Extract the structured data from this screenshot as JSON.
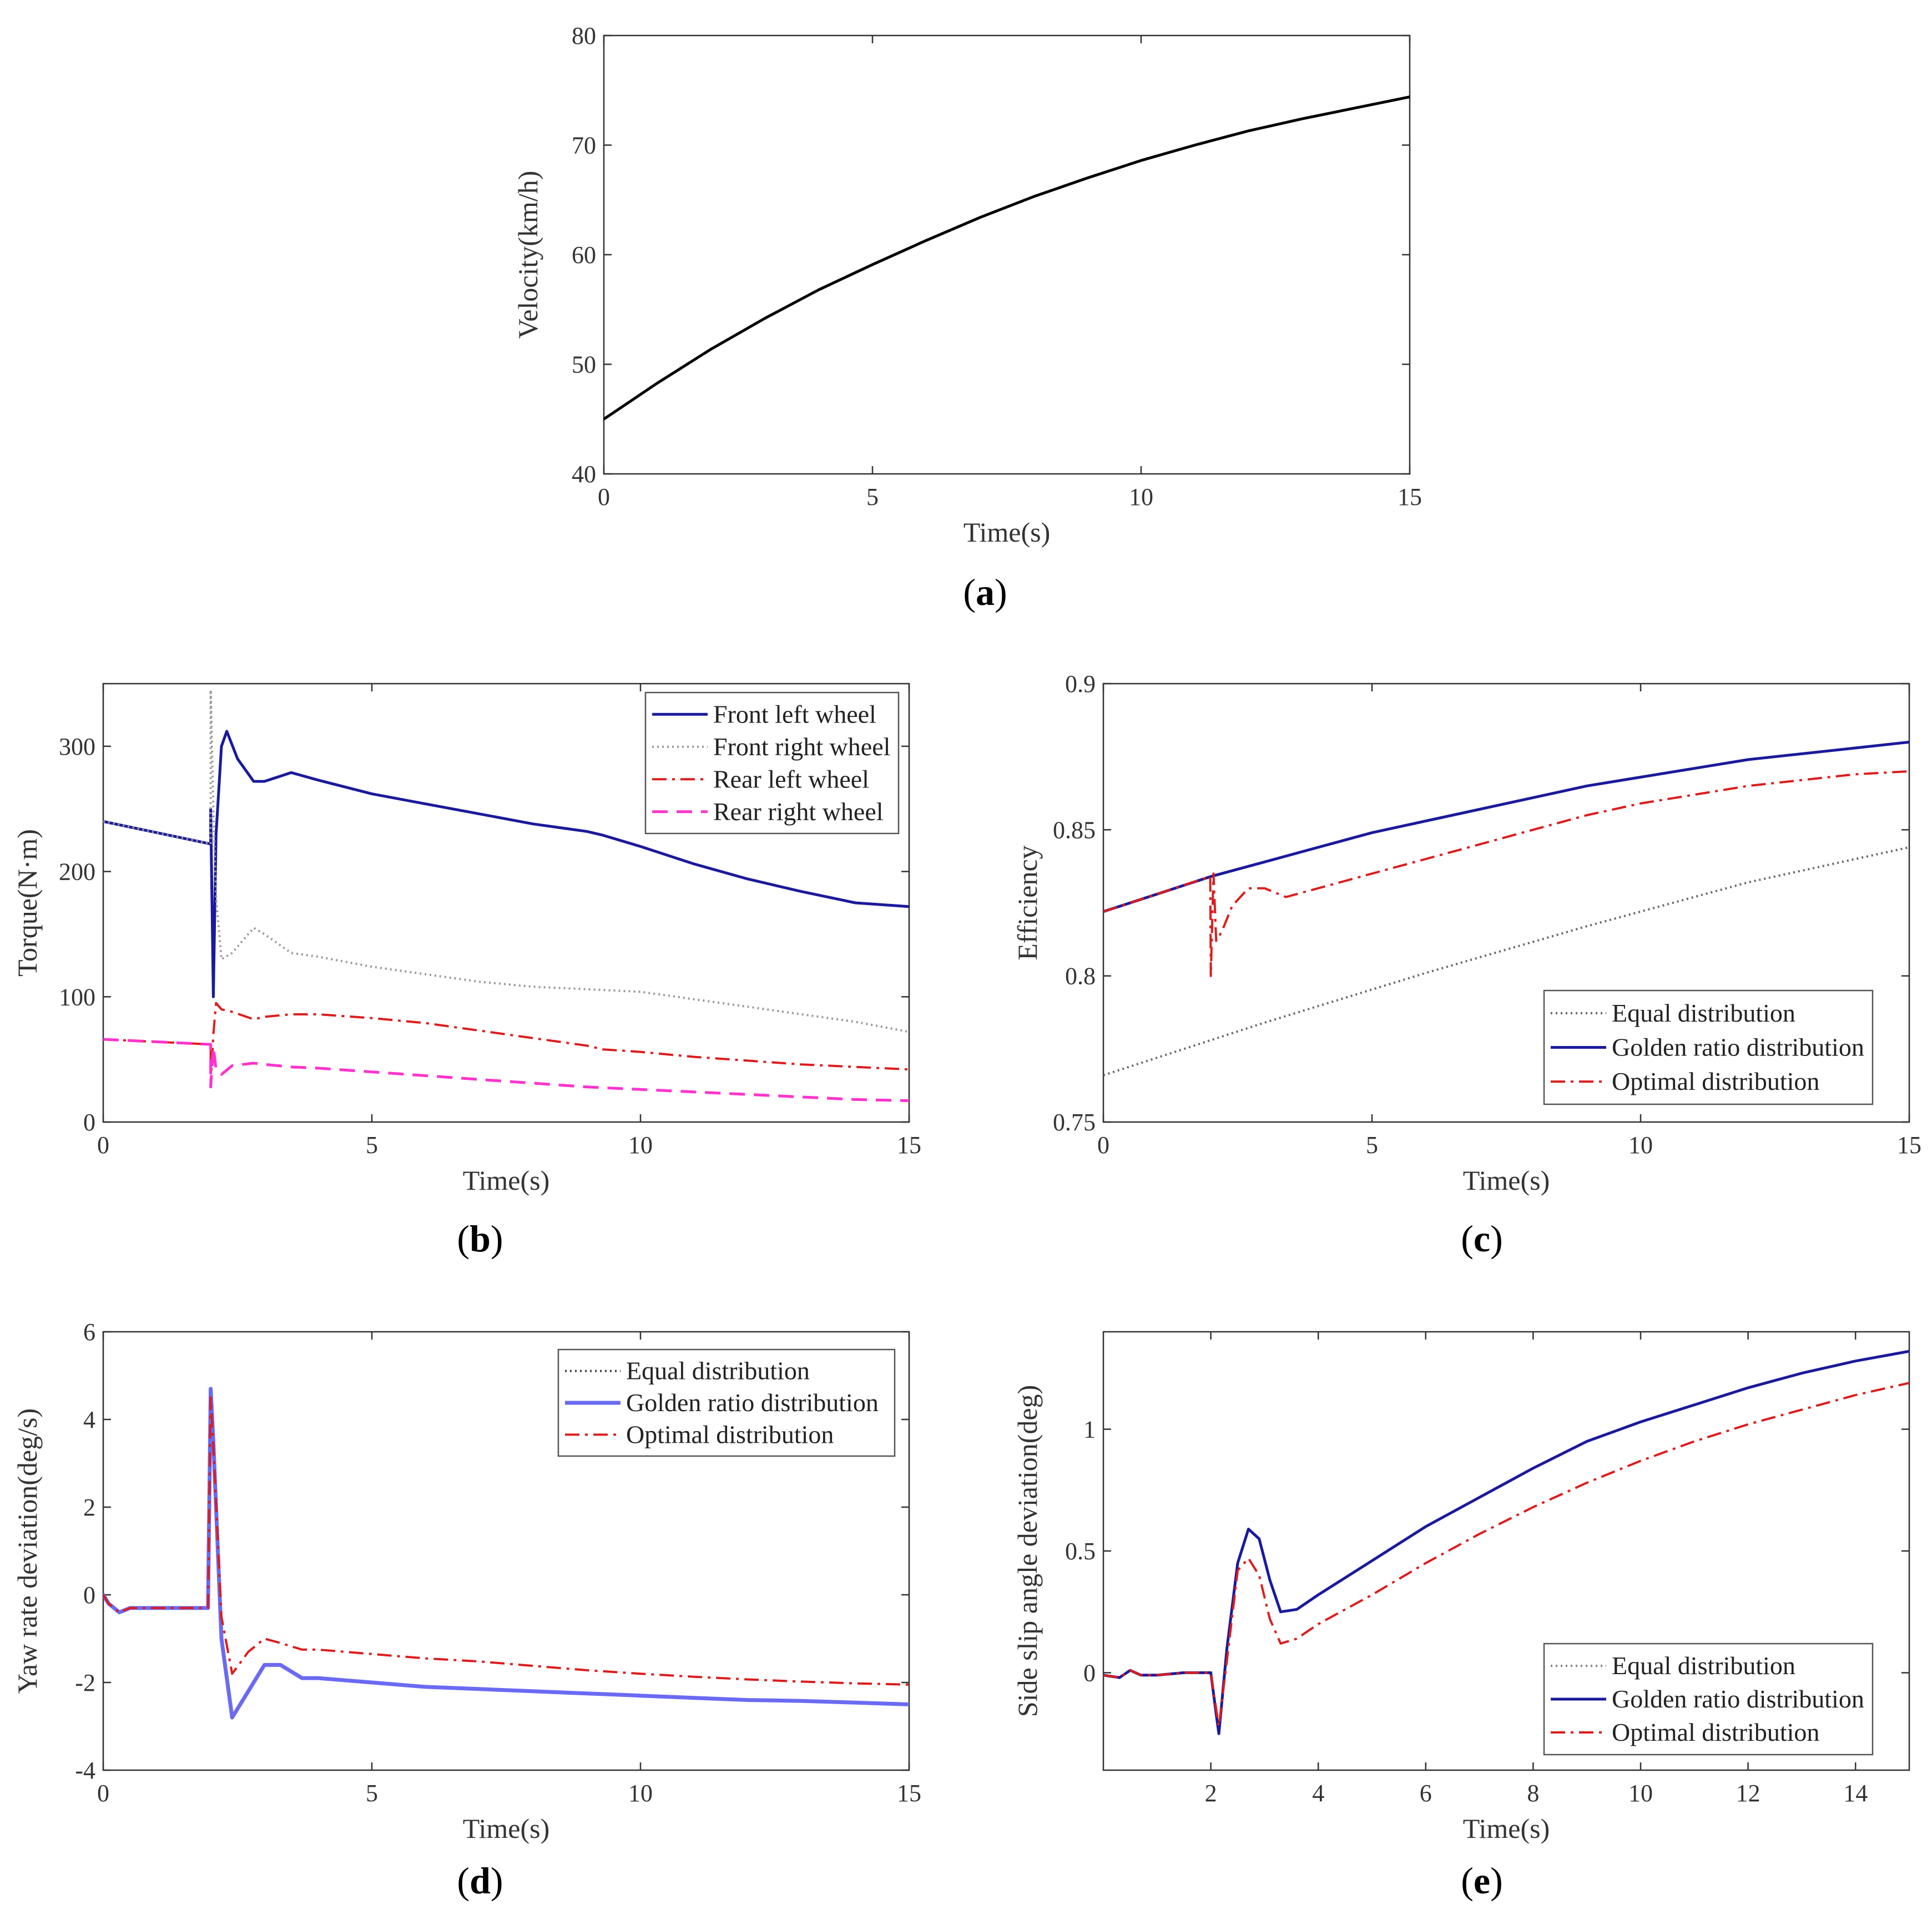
{
  "chart_data": [
    {
      "id": "a",
      "type": "line",
      "panel_label": "a",
      "title": "",
      "xlabel": "Time(s)",
      "ylabel": "Velocity(km/h)",
      "xlim": [
        0,
        15
      ],
      "ylim": [
        40,
        80
      ],
      "xticks": [
        0,
        5,
        10,
        15
      ],
      "yticks": [
        40,
        50,
        60,
        70,
        80
      ],
      "legend": null,
      "series": [
        {
          "name": "Velocity",
          "color": "#000000",
          "dash": "solid",
          "width": 5,
          "x": [
            0,
            1,
            2,
            3,
            4,
            5,
            6,
            7,
            8,
            9,
            10,
            11,
            12,
            13,
            14,
            15
          ],
          "y": [
            45.0,
            48.3,
            51.4,
            54.2,
            56.8,
            59.1,
            61.3,
            63.4,
            65.3,
            67.0,
            68.6,
            70.0,
            71.3,
            72.4,
            73.4,
            74.4
          ]
        }
      ]
    },
    {
      "id": "b",
      "type": "line",
      "panel_label": "b",
      "title": "",
      "xlabel": "Time(s)",
      "ylabel": "Torque(N·m)",
      "xlim": [
        0,
        15
      ],
      "ylim": [
        0,
        350
      ],
      "xticks": [
        0,
        5,
        10,
        15
      ],
      "yticks": [
        0,
        100,
        200,
        300
      ],
      "legend": {
        "position": "top-right",
        "entries": [
          "Front left wheel",
          "Front right wheel",
          "Rear left wheel",
          "Rear right wheel"
        ]
      },
      "series": [
        {
          "name": "Front left wheel",
          "color": "#1a1a9c",
          "dash": "solid",
          "width": 5,
          "x": [
            0,
            1,
            2,
            2.0,
            2.05,
            2.1,
            2.2,
            2.3,
            2.5,
            2.8,
            3.0,
            3.5,
            4,
            5,
            6,
            7,
            8,
            9,
            9.3,
            10,
            11,
            12,
            13,
            14,
            15
          ],
          "y": [
            240,
            231,
            222,
            250,
            100,
            230,
            300,
            312,
            290,
            272,
            272,
            279,
            273,
            262,
            254,
            246,
            238,
            232,
            229,
            220,
            206,
            194,
            184,
            175,
            172
          ]
        },
        {
          "name": "Front right wheel",
          "color": "#999999",
          "dash": "dotted",
          "width": 4,
          "x": [
            0,
            1,
            2,
            2.0,
            2.05,
            2.1,
            2.2,
            2.4,
            2.8,
            3.0,
            3.5,
            4,
            5,
            6,
            7,
            8,
            9,
            10,
            11,
            12,
            13,
            14,
            15
          ],
          "y": [
            240,
            231,
            222,
            345,
            250,
            180,
            130,
            135,
            155,
            150,
            135,
            132,
            124,
            118,
            112,
            108,
            106,
            104,
            98,
            92,
            86,
            80,
            72
          ]
        },
        {
          "name": "Rear left wheel",
          "color": "#dd1c1c",
          "dash": "dashdot",
          "width": 4,
          "x": [
            0,
            1,
            2,
            2.0,
            2.05,
            2.1,
            2.2,
            2.4,
            2.8,
            3.0,
            3.5,
            4,
            5,
            6,
            7,
            8,
            9,
            9.3,
            10,
            11,
            12,
            13,
            14,
            15
          ],
          "y": [
            66,
            64,
            62,
            30,
            70,
            95,
            90,
            88,
            82,
            84,
            86,
            86,
            83,
            79,
            73,
            67,
            61,
            58,
            56,
            52,
            49,
            46,
            44,
            42
          ]
        },
        {
          "name": "Rear right wheel",
          "color": "#ff33cc",
          "dash": "dashed",
          "width": 5,
          "x": [
            0,
            1,
            2,
            2.0,
            2.05,
            2.1,
            2.2,
            2.4,
            2.8,
            3.0,
            3.5,
            4,
            5,
            6,
            7,
            8,
            9,
            10,
            11,
            12,
            13,
            14,
            15
          ],
          "y": [
            66,
            64,
            62,
            28,
            60,
            42,
            38,
            45,
            47,
            46,
            44,
            43,
            40,
            37,
            34,
            31,
            28,
            26,
            24,
            22,
            20,
            18,
            17
          ]
        }
      ]
    },
    {
      "id": "c",
      "type": "line",
      "panel_label": "c",
      "title": "",
      "xlabel": "Time(s)",
      "ylabel": "Efficiency",
      "xlim": [
        0,
        15
      ],
      "ylim": [
        0.75,
        0.9
      ],
      "xticks": [
        0,
        5,
        10,
        15
      ],
      "yticks": [
        0.75,
        0.8,
        0.85,
        0.9
      ],
      "legend": {
        "position": "bottom-right",
        "entries": [
          "Equal distribution",
          "Golden ratio distribution",
          "Optimal distribution"
        ]
      },
      "series": [
        {
          "name": "Equal distribution",
          "color": "#666666",
          "dash": "dotted",
          "width": 4,
          "x": [
            0,
            3,
            6,
            9,
            12,
            15
          ],
          "y": [
            0.766,
            0.784,
            0.801,
            0.817,
            0.832,
            0.844
          ]
        },
        {
          "name": "Golden ratio distribution",
          "color": "#1a1a9c",
          "dash": "solid",
          "width": 5,
          "x": [
            0,
            1,
            2,
            3,
            4,
            5,
            6,
            7,
            8,
            9,
            10,
            11,
            12,
            13,
            14,
            15
          ],
          "y": [
            0.822,
            0.828,
            0.834,
            0.839,
            0.844,
            0.849,
            0.853,
            0.857,
            0.861,
            0.865,
            0.868,
            0.871,
            0.874,
            0.876,
            0.878,
            0.88
          ]
        },
        {
          "name": "Optimal distribution",
          "color": "#dd1c1c",
          "dash": "dashdot",
          "width": 4,
          "x": [
            0,
            1,
            1.99,
            2.0,
            2.05,
            2.1,
            2.2,
            2.4,
            2.7,
            3.0,
            3.4,
            4,
            5,
            6,
            7,
            8,
            9,
            10,
            11,
            12,
            13,
            14,
            15
          ],
          "y": [
            0.822,
            0.828,
            0.834,
            0.8,
            0.835,
            0.812,
            0.815,
            0.824,
            0.83,
            0.83,
            0.827,
            0.83,
            0.835,
            0.84,
            0.845,
            0.85,
            0.855,
            0.859,
            0.862,
            0.865,
            0.867,
            0.869,
            0.87
          ]
        }
      ]
    },
    {
      "id": "d",
      "type": "line",
      "panel_label": "d",
      "title": "",
      "xlabel": "Time(s)",
      "ylabel": "Yaw rate deviation(deg/s)",
      "xlim": [
        0,
        15
      ],
      "ylim": [
        -4,
        6
      ],
      "xticks": [
        0,
        5,
        10,
        15
      ],
      "yticks": [
        -4,
        -2,
        0,
        2,
        4,
        6
      ],
      "legend": {
        "position": "top-right",
        "entries": [
          "Equal distribution",
          "Golden ratio distribution",
          "Optimal distribution"
        ]
      },
      "series": [
        {
          "name": "Equal distribution",
          "color": "#444444",
          "dash": "dotted",
          "width": 4,
          "x": [
            0,
            0.1,
            0.3,
            0.5,
            1,
            1.5,
            1.95,
            2.0,
            2.05,
            2.2,
            2.4,
            2.6,
            3.0,
            3.3,
            3.7,
            4,
            5,
            6,
            7,
            8,
            9,
            10,
            11,
            12,
            13,
            14,
            15
          ],
          "y": [
            0,
            -0.2,
            -0.4,
            -0.3,
            -0.3,
            -0.3,
            -0.3,
            4.7,
            3.5,
            -1.0,
            -2.8,
            -2.4,
            -1.6,
            -1.6,
            -1.9,
            -1.9,
            -2.0,
            -2.1,
            -2.15,
            -2.2,
            -2.25,
            -2.3,
            -2.35,
            -2.4,
            -2.42,
            -2.46,
            -2.5
          ]
        },
        {
          "name": "Golden ratio distribution",
          "color": "#6a6af2",
          "dash": "solid",
          "width": 7,
          "x": [
            0,
            0.1,
            0.3,
            0.5,
            1,
            1.5,
            1.95,
            2.0,
            2.05,
            2.2,
            2.4,
            2.6,
            3.0,
            3.3,
            3.7,
            4,
            5,
            6,
            7,
            8,
            9,
            10,
            11,
            12,
            13,
            14,
            15
          ],
          "y": [
            0,
            -0.2,
            -0.4,
            -0.3,
            -0.3,
            -0.3,
            -0.3,
            4.7,
            3.5,
            -1.0,
            -2.8,
            -2.4,
            -1.6,
            -1.6,
            -1.9,
            -1.9,
            -2.0,
            -2.1,
            -2.15,
            -2.2,
            -2.25,
            -2.3,
            -2.35,
            -2.4,
            -2.42,
            -2.46,
            -2.5
          ]
        },
        {
          "name": "Optimal distribution",
          "color": "#dd1c1c",
          "dash": "dashdot",
          "width": 4,
          "x": [
            0,
            0.1,
            0.3,
            0.5,
            1,
            1.5,
            1.95,
            2.0,
            2.05,
            2.2,
            2.4,
            2.7,
            3.0,
            3.3,
            3.7,
            4,
            5,
            6,
            7,
            8,
            9,
            10,
            11,
            12,
            13,
            14,
            15
          ],
          "y": [
            0,
            -0.2,
            -0.4,
            -0.3,
            -0.3,
            -0.3,
            -0.3,
            4.5,
            3.4,
            -0.5,
            -1.8,
            -1.3,
            -1.0,
            -1.1,
            -1.25,
            -1.25,
            -1.35,
            -1.45,
            -1.52,
            -1.62,
            -1.72,
            -1.8,
            -1.87,
            -1.93,
            -1.98,
            -2.02,
            -2.05
          ]
        }
      ]
    },
    {
      "id": "e",
      "type": "line",
      "panel_label": "e",
      "title": "",
      "xlabel": "Time(s)",
      "ylabel": "Side slip angle deviation(deg)",
      "xlim": [
        0,
        15
      ],
      "ylim": [
        -0.4,
        1.4
      ],
      "xticks": [
        2,
        4,
        6,
        8,
        10,
        12,
        14
      ],
      "yticks": [
        0,
        0.5,
        1
      ],
      "legend": {
        "position": "bottom-right",
        "entries": [
          "Equal distribution",
          "Golden ratio distribution",
          "Optimal distribution"
        ]
      },
      "series": [
        {
          "name": "Equal distribution",
          "color": "#888888",
          "dash": "dotted",
          "width": 4,
          "x": [
            0,
            0.3,
            0.5,
            0.7,
            1,
            1.5,
            2.0,
            2.1,
            2.15,
            2.3,
            2.5,
            2.7,
            2.9,
            3.1,
            3.3,
            3.6,
            4,
            5,
            6,
            7,
            8,
            9,
            10,
            11,
            12,
            13,
            14,
            15
          ],
          "y": [
            -0.01,
            -0.02,
            0.01,
            -0.01,
            -0.01,
            0.0,
            0.0,
            -0.17,
            -0.25,
            0.1,
            0.45,
            0.59,
            0.55,
            0.38,
            0.25,
            0.26,
            0.32,
            0.46,
            0.6,
            0.72,
            0.84,
            0.95,
            1.03,
            1.1,
            1.17,
            1.23,
            1.28,
            1.32
          ]
        },
        {
          "name": "Golden ratio distribution",
          "color": "#1a1a9c",
          "dash": "solid",
          "width": 5,
          "x": [
            0,
            0.3,
            0.5,
            0.7,
            1,
            1.5,
            2.0,
            2.1,
            2.15,
            2.3,
            2.5,
            2.7,
            2.9,
            3.1,
            3.3,
            3.6,
            4,
            5,
            6,
            7,
            8,
            9,
            10,
            11,
            12,
            13,
            14,
            15
          ],
          "y": [
            -0.01,
            -0.02,
            0.01,
            -0.01,
            -0.01,
            0.0,
            0.0,
            -0.17,
            -0.25,
            0.1,
            0.45,
            0.59,
            0.55,
            0.38,
            0.25,
            0.26,
            0.32,
            0.46,
            0.6,
            0.72,
            0.84,
            0.95,
            1.03,
            1.1,
            1.17,
            1.23,
            1.28,
            1.32
          ]
        },
        {
          "name": "Optimal distribution",
          "color": "#dd1c1c",
          "dash": "dashdot",
          "width": 4,
          "x": [
            0,
            0.3,
            0.5,
            0.7,
            1,
            1.5,
            2.0,
            2.1,
            2.15,
            2.3,
            2.5,
            2.7,
            2.9,
            3.1,
            3.3,
            3.6,
            4,
            5,
            6,
            7,
            8,
            9,
            10,
            11,
            12,
            13,
            14,
            15
          ],
          "y": [
            -0.01,
            -0.02,
            0.01,
            -0.01,
            -0.01,
            0.0,
            0.0,
            -0.15,
            -0.22,
            0.05,
            0.42,
            0.47,
            0.4,
            0.22,
            0.12,
            0.14,
            0.2,
            0.32,
            0.45,
            0.57,
            0.68,
            0.78,
            0.87,
            0.95,
            1.02,
            1.08,
            1.14,
            1.19
          ]
        }
      ]
    }
  ]
}
